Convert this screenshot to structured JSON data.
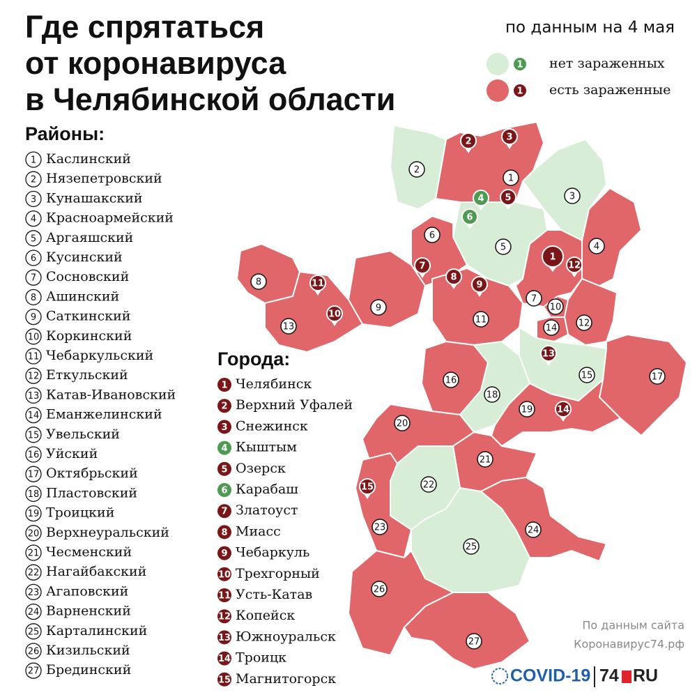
{
  "header": {
    "title": [
      "Где спрятаться",
      "от коронавируса",
      "в Челябинской области"
    ],
    "date": "по данным на 4 мая"
  },
  "legend": {
    "items": [
      {
        "marker": 1,
        "label": "нет зараженных",
        "status": "clean"
      },
      {
        "marker": 1,
        "label": "есть зараженные",
        "status": "infected"
      }
    ]
  },
  "colors": {
    "clean": "#d8edd6",
    "infected": "#e06669",
    "pin_clean": "#4f9a52",
    "pin_infected": "#7a1518"
  },
  "districts": {
    "heading": "Районы:",
    "items": [
      {
        "number": 1,
        "name": "Каслинский",
        "status": "infected"
      },
      {
        "number": 2,
        "name": "Нязепетровский",
        "status": "clean"
      },
      {
        "number": 3,
        "name": "Кунашакский",
        "status": "clean"
      },
      {
        "number": 4,
        "name": "Красноармейский",
        "status": "infected"
      },
      {
        "number": 5,
        "name": "Аргаяшский",
        "status": "clean"
      },
      {
        "number": 6,
        "name": "Кусинский",
        "status": "infected"
      },
      {
        "number": 7,
        "name": "Сосновский",
        "status": "infected"
      },
      {
        "number": 8,
        "name": "Ашинский",
        "status": "infected"
      },
      {
        "number": 9,
        "name": "Саткинский",
        "status": "infected"
      },
      {
        "number": 10,
        "name": "Коркинский",
        "status": "infected"
      },
      {
        "number": 11,
        "name": "Чебаркульский",
        "status": "infected"
      },
      {
        "number": 12,
        "name": "Еткульский",
        "status": "infected"
      },
      {
        "number": 13,
        "name": "Катав-Ивановский",
        "status": "infected"
      },
      {
        "number": 14,
        "name": "Еманжелинский",
        "status": "infected"
      },
      {
        "number": 15,
        "name": "Увельский",
        "status": "clean"
      },
      {
        "number": 16,
        "name": "Уйский",
        "status": "infected"
      },
      {
        "number": 17,
        "name": "Октябрьский",
        "status": "infected"
      },
      {
        "number": 18,
        "name": "Пластовский",
        "status": "clean"
      },
      {
        "number": 19,
        "name": "Троицкий",
        "status": "infected"
      },
      {
        "number": 20,
        "name": "Верхнеуральский",
        "status": "infected"
      },
      {
        "number": 21,
        "name": "Чесменский",
        "status": "infected"
      },
      {
        "number": 22,
        "name": "Нагайбакский",
        "status": "clean"
      },
      {
        "number": 23,
        "name": "Агаповский",
        "status": "infected"
      },
      {
        "number": 24,
        "name": "Варненский",
        "status": "infected"
      },
      {
        "number": 25,
        "name": "Карталинский",
        "status": "clean"
      },
      {
        "number": 26,
        "name": "Кизильский",
        "status": "infected"
      },
      {
        "number": 27,
        "name": "Брединский",
        "status": "infected"
      }
    ]
  },
  "cities": {
    "heading": "Города:",
    "items": [
      {
        "number": 1,
        "name": "Челябинск",
        "status": "infected"
      },
      {
        "number": 2,
        "name": "Верхний Уфалей",
        "status": "infected"
      },
      {
        "number": 3,
        "name": "Снежинск",
        "status": "infected"
      },
      {
        "number": 4,
        "name": "Кыштым",
        "status": "clean"
      },
      {
        "number": 5,
        "name": "Озерск",
        "status": "infected"
      },
      {
        "number": 6,
        "name": "Карабаш",
        "status": "clean"
      },
      {
        "number": 7,
        "name": "Златоуст",
        "status": "infected"
      },
      {
        "number": 8,
        "name": "Миасс",
        "status": "infected"
      },
      {
        "number": 9,
        "name": "Чебаркуль",
        "status": "infected"
      },
      {
        "number": 10,
        "name": "Трехгорный",
        "status": "infected"
      },
      {
        "number": 11,
        "name": "Усть-Катав",
        "status": "infected"
      },
      {
        "number": 12,
        "name": "Копейск",
        "status": "infected"
      },
      {
        "number": 13,
        "name": "Южноуральск",
        "status": "infected"
      },
      {
        "number": 14,
        "name": "Троицк",
        "status": "infected"
      },
      {
        "number": 15,
        "name": "Магнитогорск",
        "status": "infected"
      }
    ]
  },
  "footer": {
    "source": [
      "По данным сайта",
      "Коронавирус74.рф"
    ],
    "logo": [
      "COVID-19",
      "74",
      "RU"
    ]
  }
}
